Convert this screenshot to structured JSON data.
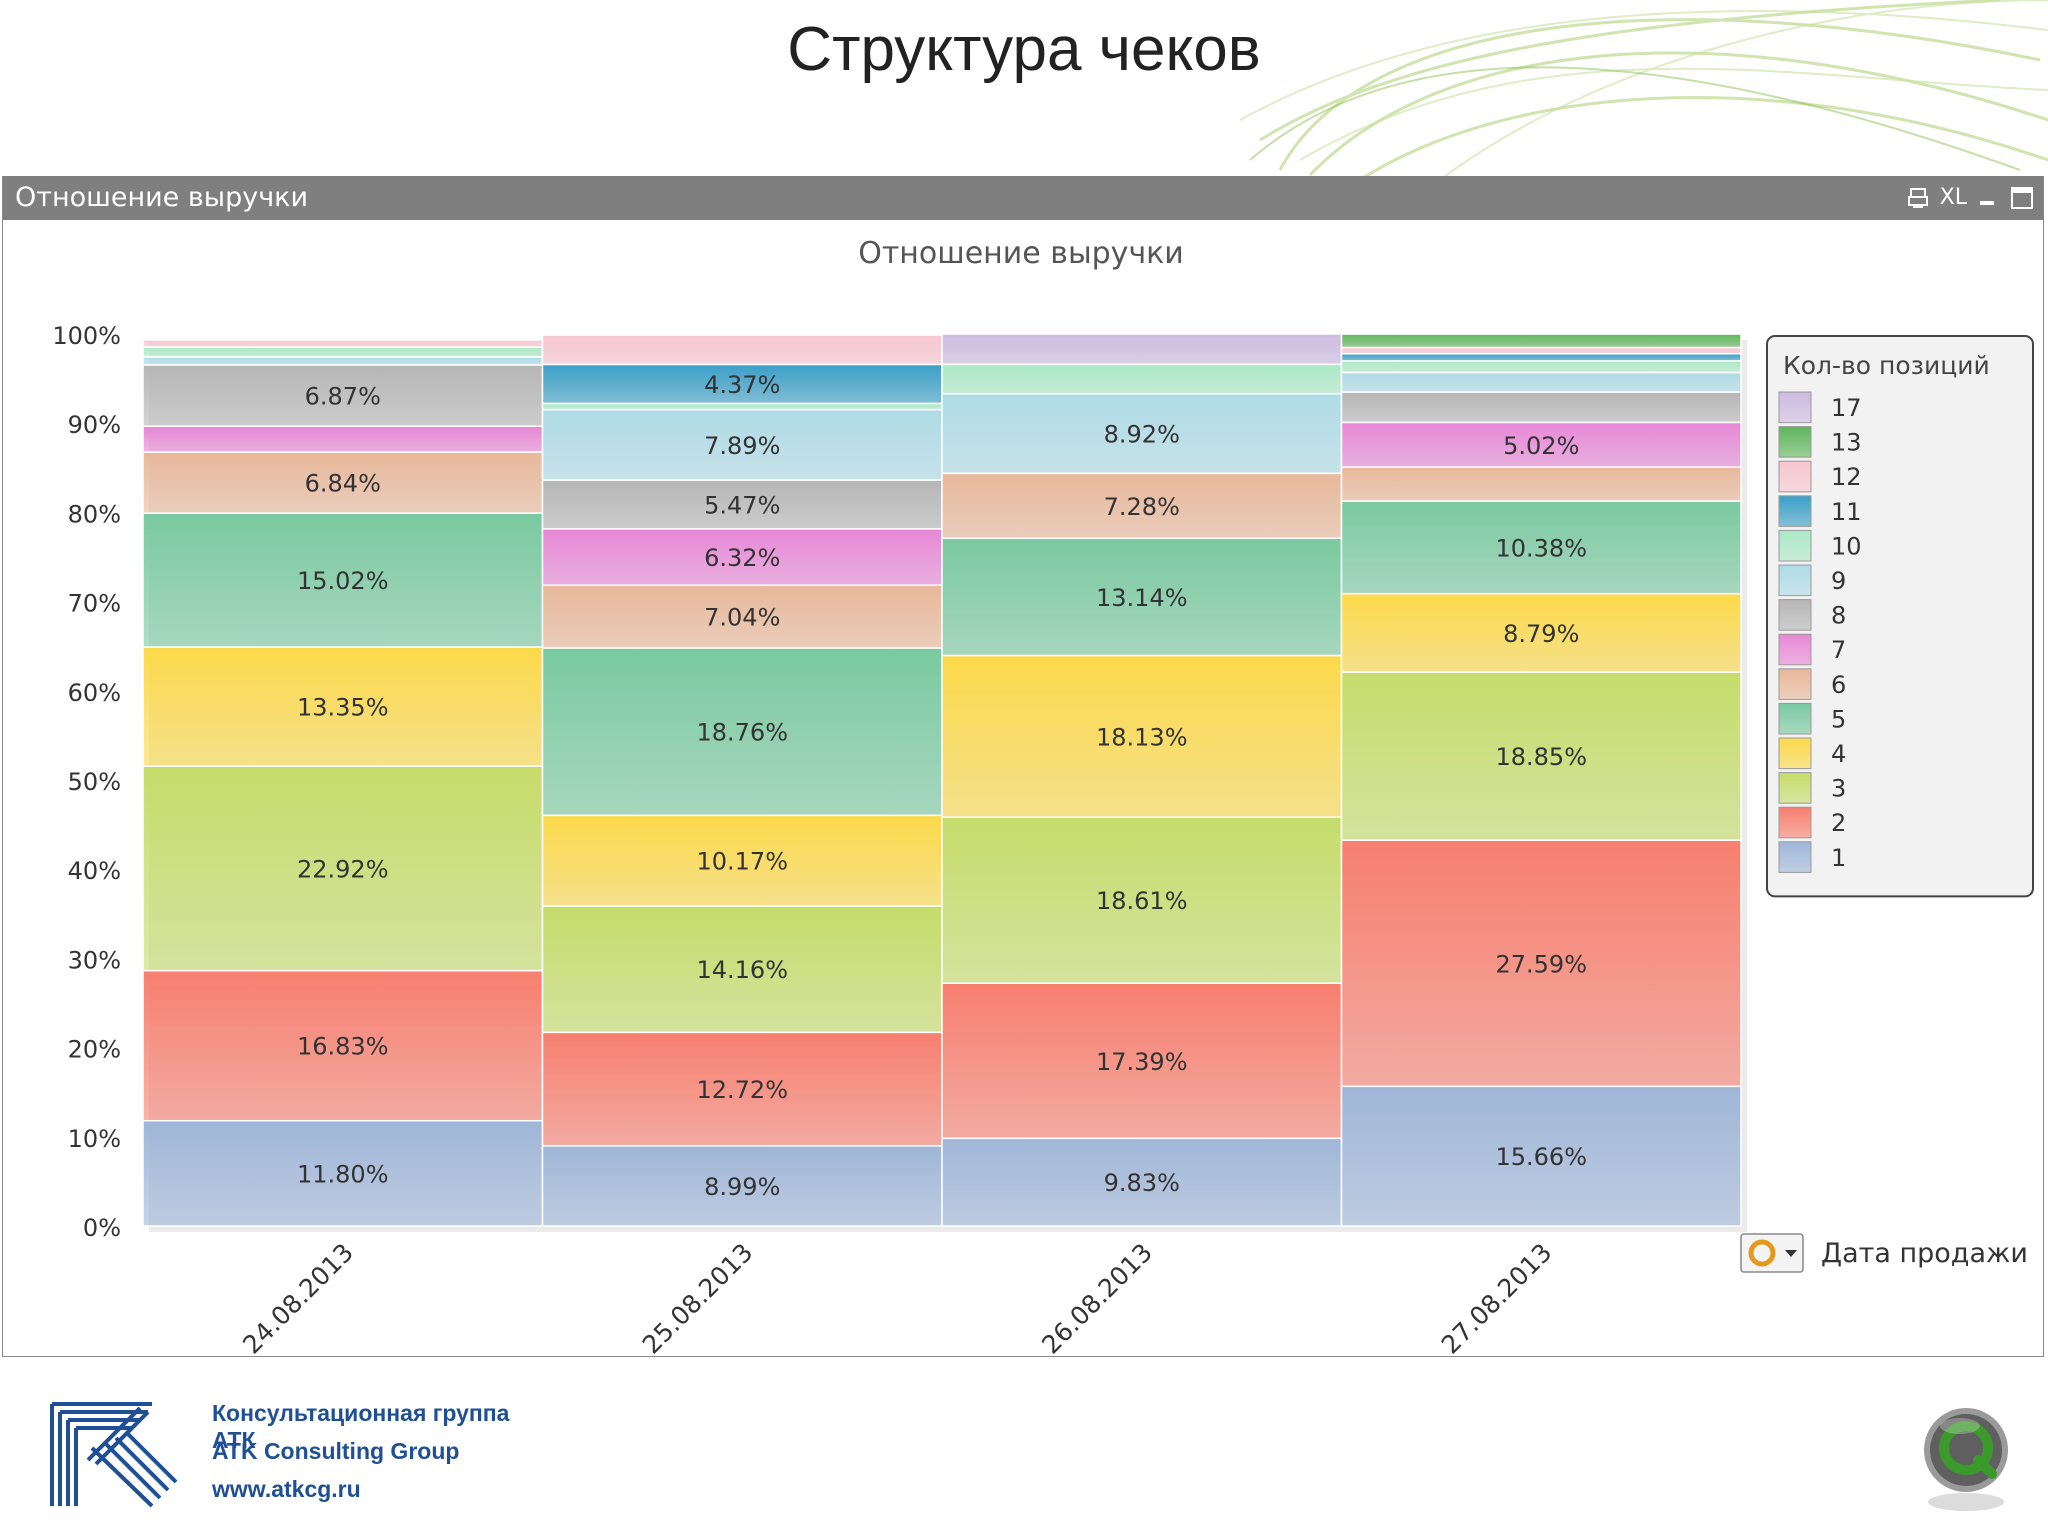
{
  "slide": {
    "title": "Структура чеков"
  },
  "panel": {
    "caption": "Отношение выручки",
    "tools": [
      "XL"
    ]
  },
  "chart_data": {
    "type": "bar",
    "stacked": true,
    "percent_stacked": true,
    "title": "Отношение выручки",
    "xlabel": "Дата продажи",
    "ylabel": "",
    "ylim": [
      0,
      100
    ],
    "y_ticks": [
      "0%",
      "10%",
      "20%",
      "30%",
      "40%",
      "50%",
      "60%",
      "70%",
      "80%",
      "90%",
      "100%"
    ],
    "categories": [
      "24.08.2013",
      "25.08.2013",
      "26.08.2013",
      "27.08.2013"
    ],
    "legend_title": "Кол-во позиций",
    "legend_position": "right",
    "series": [
      {
        "name": "1",
        "color": "#9fb6d8",
        "values": [
          11.8,
          8.99,
          9.83,
          15.66
        ]
      },
      {
        "name": "2",
        "color": "#f77f6f",
        "values": [
          16.83,
          12.72,
          17.39,
          27.59
        ]
      },
      {
        "name": "3",
        "color": "#c6dc6a",
        "values": [
          22.92,
          14.16,
          18.61,
          18.85
        ]
      },
      {
        "name": "4",
        "color": "#fcd94a",
        "values": [
          13.35,
          10.17,
          18.13,
          8.79
        ]
      },
      {
        "name": "5",
        "color": "#79c9a0",
        "values": [
          15.02,
          18.76,
          13.14,
          10.38
        ]
      },
      {
        "name": "6",
        "color": "#e8b89a",
        "values": [
          6.84,
          7.04,
          7.28,
          3.8
        ]
      },
      {
        "name": "7",
        "color": "#e787d6",
        "values": [
          2.9,
          6.32,
          0,
          5.02
        ]
      },
      {
        "name": "8",
        "color": "#b6b6b6",
        "values": [
          6.87,
          5.47,
          0,
          3.4
        ]
      },
      {
        "name": "9",
        "color": "#aedbe6",
        "values": [
          0.9,
          7.89,
          8.92,
          2.2
        ]
      },
      {
        "name": "10",
        "color": "#ace9c6",
        "values": [
          1.1,
          0.7,
          3.3,
          1.3
        ]
      },
      {
        "name": "11",
        "color": "#3a9fc6",
        "values": [
          0,
          4.37,
          0,
          0.8
        ]
      },
      {
        "name": "12",
        "color": "#f8c6cf",
        "values": [
          0.8,
          3.3,
          0,
          0.7
        ]
      },
      {
        "name": "13",
        "color": "#5fb55a",
        "values": [
          0,
          0,
          0,
          1.5
        ]
      },
      {
        "name": "17",
        "color": "#cdbbe0",
        "values": [
          0,
          0,
          3.4,
          0
        ]
      }
    ],
    "data_labels": [
      [
        "11.80%",
        "16.83%",
        "22.92%",
        "13.35%",
        "15.02%",
        "6.84%",
        "",
        "6.87%",
        "",
        "",
        "",
        "",
        "",
        ""
      ],
      [
        "8.99%",
        "12.72%",
        "14.16%",
        "10.17%",
        "18.76%",
        "7.04%",
        "6.32%",
        "5.47%",
        "7.89%",
        "",
        "4.37%",
        "",
        "",
        ""
      ],
      [
        "9.83%",
        "17.39%",
        "18.61%",
        "18.13%",
        "13.14%",
        "7.28%",
        "",
        "",
        "8.92%",
        "",
        "",
        "",
        "",
        ""
      ],
      [
        "15.66%",
        "27.59%",
        "18.85%",
        "8.79%",
        "10.38%",
        "",
        "5.02%",
        "",
        "",
        "",
        "",
        "",
        "",
        ""
      ]
    ],
    "legend_order": [
      "17",
      "13",
      "12",
      "11",
      "10",
      "9",
      "8",
      "7",
      "6",
      "5",
      "4",
      "3",
      "2",
      "1"
    ],
    "dimension_selector_label": "Дата продажи"
  },
  "footer": {
    "company_ru": "Консультационная группа АТК",
    "company_en": "ATK Consulting Group",
    "website": "www.atkcg.ru"
  }
}
